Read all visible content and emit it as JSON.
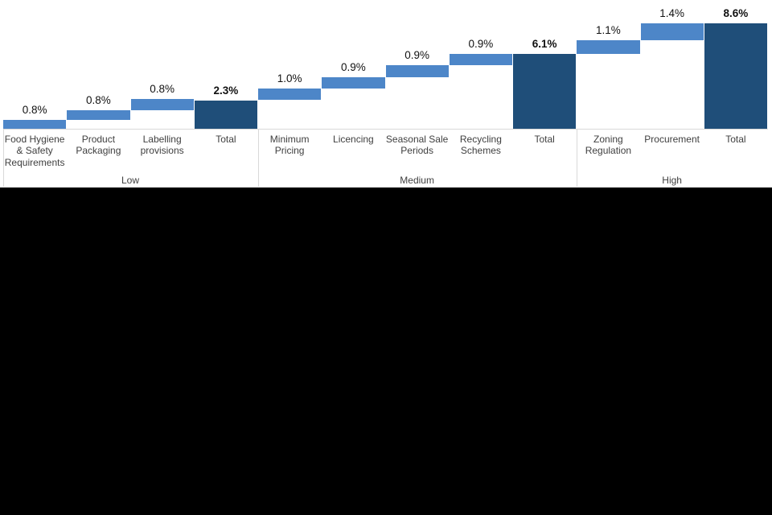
{
  "chart_data": {
    "type": "bar",
    "variant": "waterfall",
    "title": "",
    "value_unit": "%",
    "ylim": [
      0,
      8.6
    ],
    "grid": false,
    "legend": "none",
    "colors": {
      "step_bar": "#4D86C8",
      "total_bar": "#1F4E79",
      "axis_line": "#D9D9D9",
      "separator_line": "#D9D9D9",
      "value_text": "#111111",
      "category_text": "#3F3F3F",
      "group_text": "#3F3F3F"
    },
    "groups": [
      {
        "label": "Low",
        "total": 2.3,
        "bars": [
          {
            "category": "Food Hygiene & Safety Requirements",
            "label": "0.8%",
            "value": 0.8,
            "start": 0.0,
            "end": 0.72,
            "role": "step"
          },
          {
            "category": "Product Packaging",
            "label": "0.8%",
            "value": 0.8,
            "start": 0.72,
            "end": 1.5,
            "role": "step"
          },
          {
            "category": "Labelling provisions",
            "label": "0.8%",
            "value": 0.8,
            "start": 1.5,
            "end": 2.42,
            "role": "step"
          },
          {
            "category": "Total",
            "label": "2.3%",
            "value": 2.3,
            "start": 0.0,
            "end": 2.3,
            "role": "total"
          }
        ]
      },
      {
        "label": "Medium",
        "total": 6.1,
        "bars": [
          {
            "category": "Minimum Pricing",
            "label": "1.0%",
            "value": 1.0,
            "start": 2.37,
            "end": 3.3,
            "role": "step"
          },
          {
            "category": "Licencing",
            "label": "0.9%",
            "value": 0.9,
            "start": 3.3,
            "end": 4.17,
            "role": "step"
          },
          {
            "category": "Seasonal Sale Periods",
            "label": "0.9%",
            "value": 0.9,
            "start": 4.17,
            "end": 5.2,
            "role": "step"
          },
          {
            "category": "Recycling Schemes",
            "label": "0.9%",
            "value": 0.9,
            "start": 5.2,
            "end": 6.13,
            "role": "step"
          },
          {
            "category": "Total",
            "label": "6.1%",
            "value": 6.1,
            "start": 0.0,
            "end": 6.1,
            "role": "total"
          }
        ]
      },
      {
        "label": "High",
        "total": 8.6,
        "bars": [
          {
            "category": "Zoning Regulation",
            "label": "1.1%",
            "value": 1.1,
            "start": 6.13,
            "end": 7.2,
            "role": "step"
          },
          {
            "category": "Procurement",
            "label": "1.4%",
            "value": 1.4,
            "start": 7.2,
            "end": 8.6,
            "role": "step"
          },
          {
            "category": "Total",
            "label": "8.6%",
            "value": 8.6,
            "start": 0.0,
            "end": 8.6,
            "role": "total"
          }
        ]
      }
    ]
  }
}
